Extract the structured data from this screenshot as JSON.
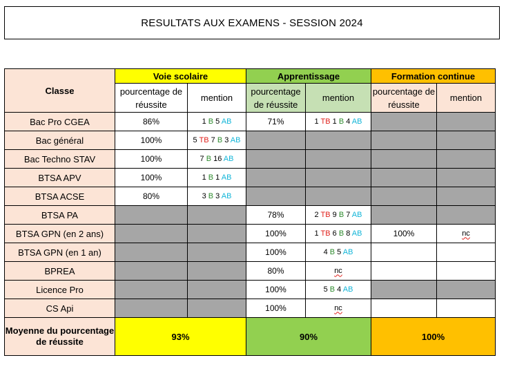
{
  "title": "RESULTATS AUX EXAMENS - SESSION 2024",
  "headers": {
    "classe": "Classe",
    "voie": "Voie scolaire",
    "apprentissage": "Apprentissage",
    "formation": "Formation continue",
    "pct": "pourcentage de réussite",
    "mention": "mention"
  },
  "rows": [
    {
      "classe": "Bac Pro CGEA",
      "vs_pct": "86%",
      "vs_mention": "1 B 5 AB",
      "ap_pct": "71%",
      "ap_mention": "1 TB 1 B 4 AB",
      "fc_pct": "",
      "fc_mention": ""
    },
    {
      "classe": "Bac général",
      "vs_pct": "100%",
      "vs_mention": "5 TB 7 B 3 AB",
      "ap_pct": "",
      "ap_mention": "",
      "fc_pct": "",
      "fc_mention": ""
    },
    {
      "classe": "Bac Techno STAV",
      "vs_pct": "100%",
      "vs_mention": "7 B 16 AB",
      "ap_pct": "",
      "ap_mention": "",
      "fc_pct": "",
      "fc_mention": ""
    },
    {
      "classe": "BTSA APV",
      "vs_pct": "100%",
      "vs_mention": "1 B 1 AB",
      "ap_pct": "",
      "ap_mention": "",
      "fc_pct": "",
      "fc_mention": ""
    },
    {
      "classe": "BTSA ACSE",
      "vs_pct": "80%",
      "vs_mention": "3 B 3 AB",
      "ap_pct": "",
      "ap_mention": "",
      "fc_pct": "",
      "fc_mention": ""
    },
    {
      "classe": "BTSA PA",
      "vs_pct": "",
      "vs_mention": "",
      "ap_pct": "78%",
      "ap_mention": "2 TB 9 B 7 AB",
      "fc_pct": "",
      "fc_mention": ""
    },
    {
      "classe": "BTSA GPN (en 2 ans)",
      "vs_pct": "",
      "vs_mention": "",
      "ap_pct": "100%",
      "ap_mention": "1 TB 6 B 8 AB",
      "fc_pct": "100%",
      "fc_mention": "nc"
    },
    {
      "classe": "BTSA GPN (en 1 an)",
      "vs_pct": "",
      "vs_mention": "",
      "ap_pct": "100%",
      "ap_mention": "4 B 5 AB",
      "fc_pct": "",
      "fc_mention": ""
    },
    {
      "classe": "BPREA",
      "vs_pct": "",
      "vs_mention": "",
      "ap_pct": "80%",
      "ap_mention": "nc",
      "fc_pct": "",
      "fc_mention": ""
    },
    {
      "classe": "Licence Pro",
      "vs_pct": "",
      "vs_mention": "",
      "ap_pct": "100%",
      "ap_mention": "5 B 4 AB",
      "fc_pct": "",
      "fc_mention": ""
    },
    {
      "classe": "CS Api",
      "vs_pct": "",
      "vs_mention": "",
      "ap_pct": "100%",
      "ap_mention": "nc",
      "fc_pct": "",
      "fc_mention": ""
    }
  ],
  "average": {
    "label": "Moyenne du pourcentage de réussite",
    "voie": "93%",
    "apprentissage": "90%",
    "formation": "100%"
  },
  "colors": {
    "voie": "#ffff00",
    "apprentissage": "#92d050",
    "apprentissage_light": "#c6e0b4",
    "formation": "#ffc000",
    "classe": "#fce4d6",
    "empty": "#a6a6a6",
    "tb": "#e0201b",
    "b": "#2e8b2e",
    "ab": "#12b5d8"
  }
}
